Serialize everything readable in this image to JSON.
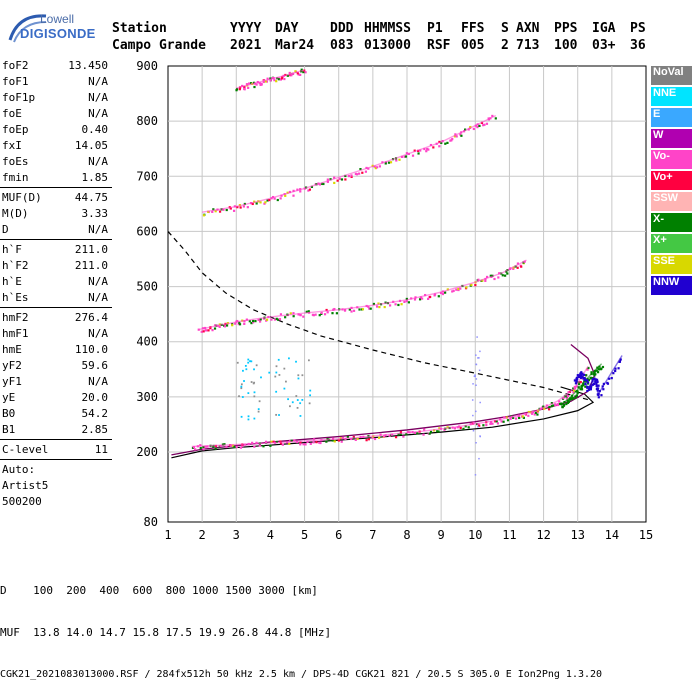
{
  "logo": {
    "line1": "Lowell",
    "line2": "DIGISONDE"
  },
  "header": {
    "labels": [
      "Station",
      "YYYY",
      "DAY",
      "DDD",
      "HHMMSS",
      "P1",
      "FFS",
      "S",
      "AXN",
      "PPS",
      "IGA",
      "PS"
    ],
    "values": [
      "Campo Grande",
      "2021",
      "Mar24",
      "083",
      "013000",
      "RSF",
      "005",
      "2",
      "713",
      "100",
      "03+",
      "36"
    ]
  },
  "params": {
    "group1": [
      {
        "name": "foF2",
        "value": "13.450"
      },
      {
        "name": "foF1",
        "value": "N/A"
      },
      {
        "name": "foF1p",
        "value": "N/A"
      },
      {
        "name": "foE",
        "value": "N/A"
      },
      {
        "name": "foEp",
        "value": "0.40"
      },
      {
        "name": "fxI",
        "value": "14.05"
      },
      {
        "name": "foEs",
        "value": "N/A"
      },
      {
        "name": "fmin",
        "value": "1.85"
      }
    ],
    "group2": [
      {
        "name": "MUF(D)",
        "value": "44.75"
      },
      {
        "name": "M(D)",
        "value": "3.33"
      },
      {
        "name": "D",
        "value": "N/A"
      }
    ],
    "group3": [
      {
        "name": "h`F",
        "value": "211.0"
      },
      {
        "name": "h`F2",
        "value": "211.0"
      },
      {
        "name": "h`E",
        "value": "N/A"
      },
      {
        "name": "h`Es",
        "value": "N/A"
      }
    ],
    "group4": [
      {
        "name": "hmF2",
        "value": "276.4"
      },
      {
        "name": "hmF1",
        "value": "N/A"
      },
      {
        "name": "hmE",
        "value": "110.0"
      },
      {
        "name": "yF2",
        "value": "59.6"
      },
      {
        "name": "yF1",
        "value": "N/A"
      },
      {
        "name": "yE",
        "value": "20.0"
      },
      {
        "name": "B0",
        "value": "54.2"
      },
      {
        "name": "B1",
        "value": "2.85"
      }
    ],
    "group5": [
      {
        "name": "C-level",
        "value": "11"
      }
    ],
    "extra": [
      "Auto:",
      "Artist5",
      "500200"
    ]
  },
  "legend": [
    {
      "label": "NoVal",
      "color": "#808080"
    },
    {
      "label": "NNE",
      "color": "#00e4ff"
    },
    {
      "label": "E",
      "color": "#3aa8ff"
    },
    {
      "label": "W",
      "color": "#b000b0"
    },
    {
      "label": "Vo-",
      "color": "#ff44c8"
    },
    {
      "label": "Vo+",
      "color": "#ff0040"
    },
    {
      "label": "SSW",
      "color": "#ffb4b4"
    },
    {
      "label": "X-",
      "color": "#008000"
    },
    {
      "label": "X+",
      "color": "#44c844"
    },
    {
      "label": "SSE",
      "color": "#d8d800"
    },
    {
      "label": "NNW",
      "color": "#2000d0"
    }
  ],
  "footer": {
    "d_line": "D    100  200  400  600  800 1000 1500 3000 [km]",
    "muf_line": "MUF  13.8 14.0 14.7 15.8 17.5 19.9 26.8 44.8 [MHz]",
    "source_line": "CGK21_2021083013000.RSF / 284fx512h 50 kHz 2.5 km / DPS-4D CGK21 821 / 20.5 S 305.0 E Ion2Png 1.3.20"
  },
  "chart_data": {
    "type": "scatter",
    "xlim": [
      1,
      15
    ],
    "ylim": [
      80,
      900
    ],
    "x_ticks": [
      1,
      2,
      3,
      4,
      5,
      6,
      7,
      8,
      9,
      10,
      11,
      12,
      13,
      14,
      15
    ],
    "y_ticks": [
      80,
      200,
      300,
      400,
      500,
      600,
      700,
      800,
      900
    ],
    "grid": true,
    "traces": [
      {
        "name": "1st hop O-trace",
        "color": "#ff44c8",
        "x": [
          1.7,
          2.5,
          3.5,
          4.5,
          5.5,
          6.5,
          7.5,
          8.5,
          9.5,
          10.5,
          11.2,
          11.8,
          12.4,
          12.9,
          13.3
        ],
        "y": [
          210,
          212,
          215,
          218,
          222,
          226,
          232,
          238,
          246,
          256,
          265,
          275,
          292,
          315,
          355
        ]
      },
      {
        "name": "2nd hop",
        "color": "#ff44c8",
        "x": [
          1.9,
          2.5,
          3.2,
          4.0,
          5.0,
          6.0,
          7.0,
          8.0,
          9.0,
          10.0,
          10.8,
          11.5
        ],
        "y": [
          422,
          430,
          438,
          445,
          452,
          458,
          466,
          476,
          490,
          508,
          525,
          548
        ]
      },
      {
        "name": "3rd hop",
        "color": "#ff44c8",
        "x": [
          2.0,
          3.0,
          4.0,
          5.0,
          6.0,
          7.0,
          8.0,
          9.0,
          9.8,
          10.6
        ],
        "y": [
          635,
          645,
          660,
          678,
          698,
          718,
          740,
          762,
          786,
          810
        ]
      },
      {
        "name": "4th hop",
        "color": "#ff44c8",
        "x": [
          3.0,
          3.5,
          4.0,
          4.5,
          5.0
        ],
        "y": [
          860,
          868,
          876,
          884,
          893
        ]
      },
      {
        "name": "X-trace",
        "color": "#008000",
        "x": [
          12.5,
          12.8,
          13.1,
          13.4,
          13.7
        ],
        "y": [
          285,
          300,
          320,
          342,
          360
        ]
      },
      {
        "name": "NNW echoes",
        "color": "#2000d0",
        "x": [
          12.9,
          13.1,
          13.3,
          13.5,
          13.6,
          14.3
        ],
        "y": [
          330,
          345,
          315,
          335,
          305,
          375
        ]
      }
    ],
    "profile_curve": {
      "x": [
        1.1,
        2,
        4,
        6,
        8,
        10,
        11,
        12,
        12.8,
        13.3,
        13.5,
        13.3,
        12.8
      ],
      "y": [
        195,
        205,
        218,
        228,
        240,
        255,
        265,
        278,
        292,
        310,
        340,
        370,
        395
      ]
    },
    "lower_curve": {
      "x": [
        1.1,
        2,
        3,
        5,
        7,
        9,
        10.5,
        12,
        13,
        13.45,
        13.2,
        12.5
      ],
      "y": [
        190,
        202,
        208,
        217,
        226,
        236,
        245,
        260,
        275,
        290,
        305,
        318
      ]
    },
    "muf_dashed_curve": {
      "x": [
        1.0,
        1.5,
        2.0,
        2.7,
        3.5,
        4.5,
        5.5,
        7.0,
        8.5,
        10.0,
        11.0,
        12.0,
        12.7,
        13.3
      ],
      "y": [
        600,
        565,
        525,
        488,
        458,
        432,
        410,
        385,
        362,
        343,
        330,
        317,
        305,
        295
      ]
    }
  }
}
